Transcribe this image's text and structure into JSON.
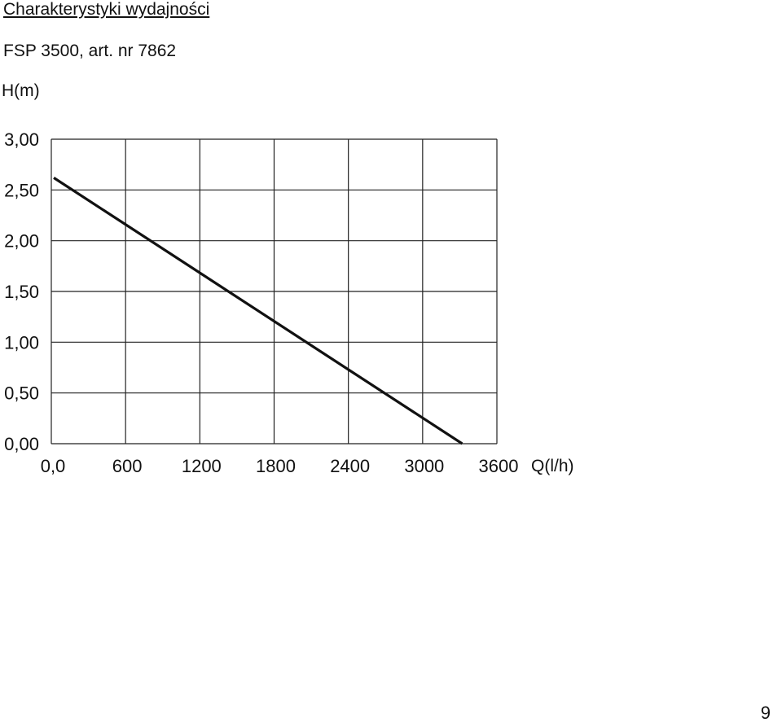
{
  "page": {
    "heading": "Charakterystyki wydajności",
    "subheading": "FSP 3500, art. nr 7862",
    "page_number": "9"
  },
  "chart_data": {
    "type": "line",
    "title": "",
    "xlabel": "Q(l/h)",
    "ylabel": "H(m)",
    "xlim": [
      0,
      3600
    ],
    "ylim": [
      0,
      3
    ],
    "grid": true,
    "x_ticks": [
      0,
      600,
      1200,
      1800,
      2400,
      3000,
      3600
    ],
    "x_tick_labels": [
      "0,0",
      "600",
      "1200",
      "1800",
      "2400",
      "3000",
      "3600"
    ],
    "y_ticks": [
      0,
      0.5,
      1,
      1.5,
      2,
      2.5,
      3
    ],
    "y_tick_labels": [
      "0,00",
      "0,50",
      "1,00",
      "1,50",
      "2,00",
      "2,50",
      "3,00"
    ],
    "series": [
      {
        "x": [
          20,
          3320
        ],
        "y": [
          2.62,
          0.0
        ],
        "color": "#111111"
      }
    ]
  }
}
